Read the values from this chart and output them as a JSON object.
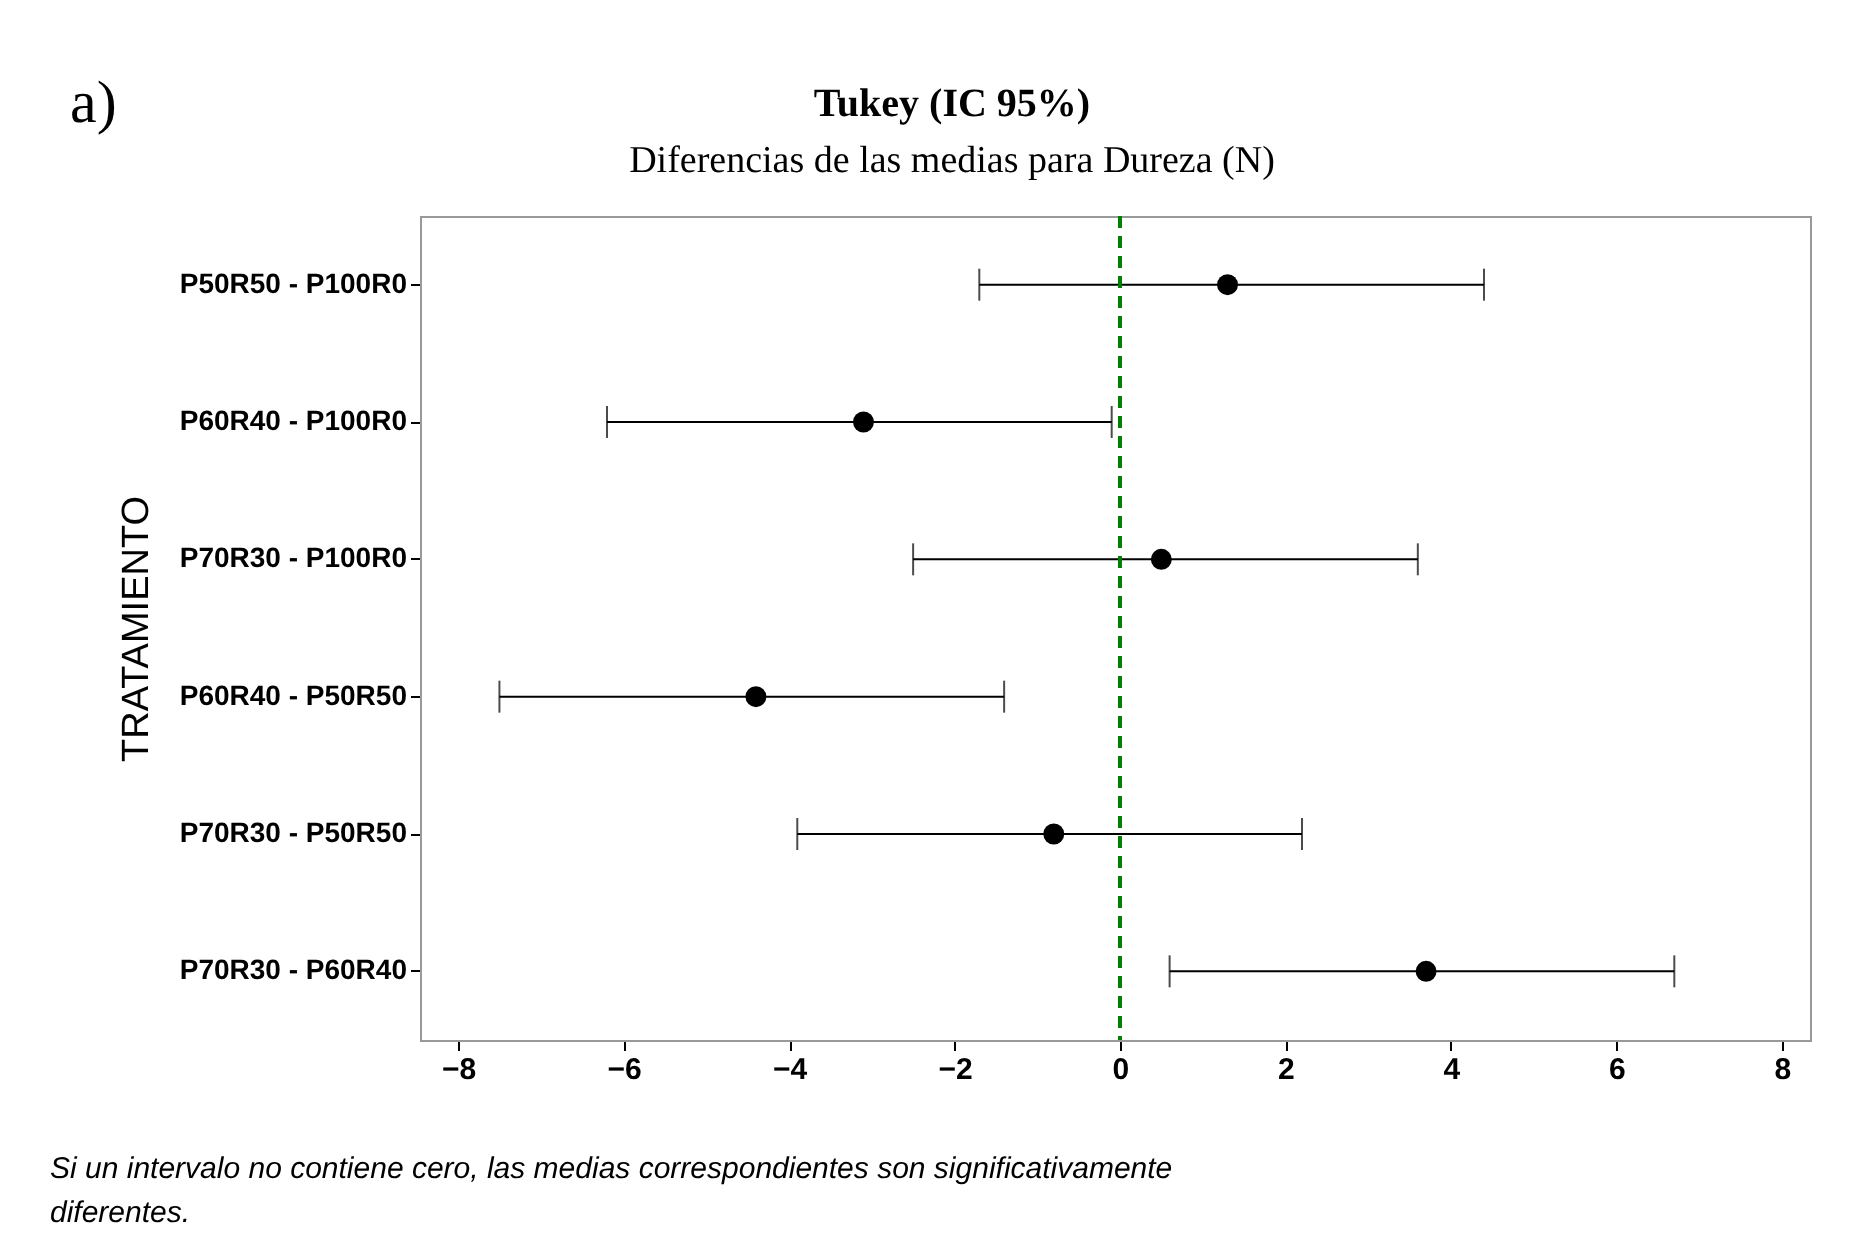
{
  "chart_data": {
    "type": "scatter",
    "orientation": "horizontal",
    "title": "Tukey (IC 95%)",
    "subtitle": "Diferencias de las medias para Dureza (N)",
    "ylabel": "TRATAMIENTO",
    "categories": [
      "P50R50 - P100R0",
      "P60R40 - P100R0",
      "P70R30 - P100R0",
      "P60R40 - P50R50",
      "P70R30 - P50R50",
      "P70R30 - P60R40"
    ],
    "series": [
      {
        "color": "#000000",
        "values": [
          1.3,
          -3.1,
          0.5,
          -4.4,
          -0.8,
          3.7
        ],
        "errors": [
          [
            -1.7,
            4.4
          ],
          [
            -6.2,
            -0.1
          ],
          [
            -2.5,
            3.6
          ],
          [
            -7.5,
            -1.4
          ],
          [
            -3.9,
            2.2
          ],
          [
            0.6,
            6.7
          ]
        ]
      }
    ],
    "xlim": [
      -8.46,
      8.34
    ],
    "xticks": [
      -8,
      -6,
      -4,
      -2,
      0,
      2,
      4,
      6,
      8
    ],
    "ref_lines": [
      {
        "axis": "x",
        "value": 0,
        "color": "#008000",
        "line_style": "dashed"
      }
    ],
    "marker": "circle",
    "grid": false,
    "legend": false,
    "annotations": [
      "a)",
      "Si un intervalo no contiene cero, las medias correspondientes son significativamente",
      "diferentes."
    ]
  }
}
